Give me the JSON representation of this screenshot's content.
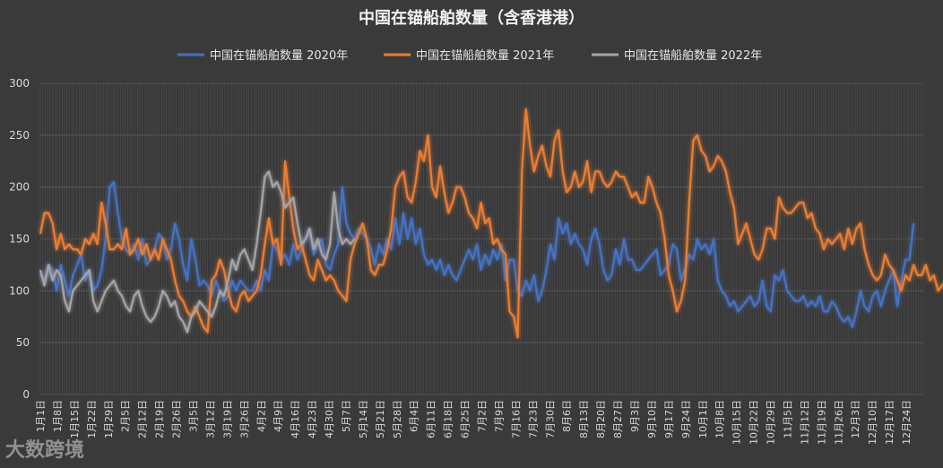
{
  "chart_data": {
    "type": "line",
    "title": "中国在锚船舶数量（含香港港）",
    "legend_position": "top",
    "grid": true,
    "ylim": [
      0,
      300
    ],
    "yticks": [
      0,
      50,
      100,
      150,
      200,
      250,
      300
    ],
    "x_tick_labels": [
      "1月1日",
      "1月8日",
      "1月15日",
      "1月22日",
      "1月29日",
      "2月5日",
      "2月12日",
      "2月19日",
      "2月26日",
      "3月5日",
      "3月12日",
      "3月19日",
      "3月26日",
      "4月2日",
      "4月9日",
      "4月16日",
      "4月23日",
      "4月30日",
      "5月7日",
      "5月14日",
      "5月21日",
      "5月28日",
      "6月4日",
      "6月11日",
      "6月18日",
      "6月25日",
      "7月2日",
      "7月9日",
      "7月16日",
      "7月23日",
      "7月30日",
      "8月6日",
      "8月13日",
      "8月20日",
      "8月27日",
      "9月3日",
      "9月10日",
      "9月17日",
      "9月24日",
      "10月1日",
      "10月8日",
      "10月15日",
      "10月22日",
      "10月29日",
      "11月5日",
      "11月12日",
      "11月19日",
      "11月26日",
      "12月3日",
      "12月10日",
      "12月17日",
      "12月24日"
    ],
    "series": [
      {
        "name": "中国在锚船舶数量 2020年",
        "color": "#4472c4",
        "values": [
          115,
          110,
          125,
          120,
          100,
          125,
          110,
          95,
          115,
          125,
          135,
          110,
          120,
          100,
          105,
          120,
          150,
          200,
          205,
          175,
          150,
          140,
          135,
          145,
          130,
          150,
          125,
          130,
          140,
          155,
          150,
          130,
          140,
          165,
          150,
          125,
          110,
          150,
          130,
          105,
          110,
          105,
          95,
          110,
          100,
          90,
          95,
          110,
          100,
          110,
          105,
          100,
          100,
          110,
          100,
          120,
          110,
          145,
          140,
          130,
          135,
          125,
          145,
          130,
          140,
          150,
          160,
          135,
          145,
          150,
          125,
          120,
          135,
          145,
          200,
          165,
          155,
          150,
          160,
          155,
          150,
          140,
          125,
          145,
          135,
          150,
          140,
          170,
          145,
          175,
          150,
          170,
          145,
          160,
          135,
          125,
          130,
          120,
          130,
          115,
          125,
          115,
          110,
          120,
          130,
          140,
          130,
          145,
          120,
          135,
          125,
          140,
          130,
          145,
          110,
          130,
          130,
          100,
          95,
          110,
          100,
          115,
          90,
          100,
          120,
          145,
          130,
          170,
          155,
          165,
          145,
          155,
          145,
          140,
          125,
          150,
          160,
          145,
          120,
          110,
          115,
          140,
          125,
          150,
          130,
          130,
          120,
          120,
          125,
          130,
          135,
          140,
          115,
          120,
          125,
          145,
          140,
          110,
          120,
          135,
          130,
          150,
          140,
          145,
          135,
          150,
          110,
          100,
          95,
          85,
          90,
          80,
          85,
          90,
          95,
          85,
          90,
          110,
          85,
          80,
          115,
          110,
          120,
          100,
          95,
          90,
          90,
          95,
          85,
          90,
          85,
          95,
          80,
          80,
          90,
          85,
          75,
          70,
          75,
          65,
          80,
          100,
          85,
          80,
          95,
          100,
          85,
          100,
          110,
          120,
          85,
          110,
          130,
          130,
          165
        ]
      },
      {
        "name": "中国在锚船舶数量 2021年",
        "color": "#ed7d31",
        "values": [
          155,
          175,
          175,
          165,
          140,
          155,
          140,
          145,
          140,
          140,
          135,
          150,
          145,
          155,
          145,
          185,
          165,
          140,
          140,
          145,
          140,
          160,
          135,
          140,
          150,
          135,
          145,
          130,
          140,
          130,
          150,
          140,
          130,
          110,
          95,
          90,
          80,
          75,
          85,
          75,
          65,
          60,
          110,
          115,
          130,
          120,
          100,
          85,
          80,
          95,
          100,
          90,
          95,
          100,
          115,
          145,
          170,
          145,
          150,
          125,
          225,
          190,
          160,
          140,
          145,
          130,
          115,
          110,
          130,
          120,
          110,
          115,
          110,
          100,
          95,
          90,
          130,
          145,
          155,
          165,
          150,
          120,
          115,
          125,
          125,
          140,
          160,
          200,
          210,
          215,
          190,
          185,
          205,
          235,
          225,
          250,
          200,
          190,
          220,
          195,
          175,
          185,
          200,
          200,
          190,
          175,
          170,
          160,
          185,
          165,
          170,
          145,
          150,
          140,
          135,
          80,
          75,
          55,
          215,
          275,
          240,
          215,
          230,
          240,
          220,
          210,
          245,
          255,
          215,
          195,
          200,
          215,
          200,
          205,
          225,
          195,
          215,
          215,
          205,
          200,
          205,
          215,
          210,
          210,
          200,
          190,
          195,
          185,
          185,
          210,
          200,
          185,
          175,
          150,
          115,
          100,
          80,
          90,
          110,
          185,
          245,
          250,
          235,
          230,
          215,
          220,
          230,
          225,
          215,
          195,
          180,
          145,
          155,
          165,
          150,
          135,
          130,
          140,
          160,
          160,
          150,
          190,
          180,
          175,
          175,
          180,
          185,
          185,
          170,
          175,
          160,
          155,
          140,
          150,
          145,
          150,
          155,
          140,
          160,
          145,
          160,
          165,
          140,
          125,
          115,
          110,
          115,
          135,
          125,
          120,
          110,
          100,
          115,
          110,
          125,
          115,
          115,
          125,
          110,
          115,
          100,
          105,
          110,
          120,
          100,
          105,
          110,
          120,
          95,
          110
        ]
      },
      {
        "name": "中国在锚船舶数量 2022年",
        "color": "#a5a5a5",
        "values": [
          120,
          105,
          125,
          110,
          120,
          115,
          90,
          80,
          100,
          105,
          110,
          115,
          120,
          90,
          80,
          90,
          100,
          105,
          110,
          100,
          95,
          85,
          80,
          95,
          100,
          85,
          75,
          70,
          75,
          85,
          100,
          95,
          85,
          90,
          75,
          70,
          60,
          75,
          80,
          90,
          85,
          80,
          75,
          85,
          100,
          95,
          110,
          130,
          120,
          135,
          140,
          130,
          120,
          145,
          175,
          210,
          215,
          200,
          205,
          195,
          180,
          185,
          190,
          165,
          145,
          150,
          160,
          140,
          150,
          135,
          130,
          145,
          195,
          160,
          145,
          150,
          145,
          150
        ]
      }
    ]
  },
  "watermark": {
    "text": "大数跨境"
  }
}
